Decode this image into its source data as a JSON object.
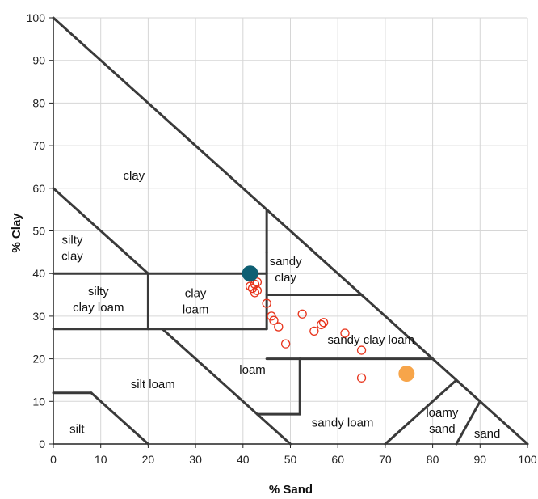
{
  "chart_data": {
    "type": "scatter",
    "title": "",
    "xlabel": "% Sand",
    "ylabel": "% Clay",
    "xlim": [
      0,
      100
    ],
    "ylim": [
      0,
      100
    ],
    "x_ticks": [
      "0",
      "10",
      "20",
      "30",
      "40",
      "50",
      "60",
      "70",
      "80",
      "90",
      "100"
    ],
    "y_ticks": [
      "0",
      "10",
      "20",
      "30",
      "40",
      "50",
      "60",
      "70",
      "80",
      "90",
      "100"
    ],
    "grid": true,
    "region_labels": [
      {
        "text": [
          "clay"
        ],
        "x": 17,
        "y": 63
      },
      {
        "text": [
          "silty",
          "clay"
        ],
        "x": 4,
        "y": 46
      },
      {
        "text": [
          "silty",
          "clay loam"
        ],
        "x": 9.5,
        "y": 34
      },
      {
        "text": [
          "clay",
          "loam"
        ],
        "x": 30,
        "y": 33.5
      },
      {
        "text": [
          "sandy",
          "clay"
        ],
        "x": 49,
        "y": 41
      },
      {
        "text": [
          "sandy clay loam"
        ],
        "x": 67,
        "y": 24.5
      },
      {
        "text": [
          "loam"
        ],
        "x": 42,
        "y": 17.5
      },
      {
        "text": [
          "silt loam"
        ],
        "x": 21,
        "y": 14
      },
      {
        "text": [
          "silt"
        ],
        "x": 5,
        "y": 3.5
      },
      {
        "text": [
          "sandy loam"
        ],
        "x": 61,
        "y": 5
      },
      {
        "text": [
          "loamy",
          "sand"
        ],
        "x": 82,
        "y": 5.5
      },
      {
        "text": [
          "sand"
        ],
        "x": 91.5,
        "y": 2.5
      }
    ],
    "boundaries": [
      [
        [
          0,
          100
        ],
        [
          100,
          0
        ]
      ],
      [
        [
          0,
          60
        ],
        [
          20,
          40
        ]
      ],
      [
        [
          0,
          40
        ],
        [
          45,
          40
        ]
      ],
      [
        [
          20,
          40
        ],
        [
          20,
          27
        ]
      ],
      [
        [
          0,
          27
        ],
        [
          45,
          27
        ]
      ],
      [
        [
          45,
          45
        ],
        [
          45,
          27
        ]
      ],
      [
        [
          45,
          35
        ],
        [
          65,
          35
        ]
      ],
      [
        [
          45,
          55
        ],
        [
          45,
          45
        ]
      ],
      [
        [
          45,
          20
        ],
        [
          80,
          20
        ]
      ],
      [
        [
          52,
          20
        ],
        [
          52,
          7
        ]
      ],
      [
        [
          43,
          7
        ],
        [
          52,
          7
        ]
      ],
      [
        [
          23,
          27
        ],
        [
          50,
          0
        ]
      ],
      [
        [
          0,
          12
        ],
        [
          8,
          12
        ]
      ],
      [
        [
          8,
          12
        ],
        [
          20,
          0
        ]
      ],
      [
        [
          70,
          0
        ],
        [
          85,
          15
        ]
      ],
      [
        [
          85,
          0
        ],
        [
          90,
          10
        ]
      ]
    ],
    "series": [
      {
        "marker": "open-circle",
        "color": "#e8341c",
        "points": [
          [
            41.5,
            37
          ],
          [
            42,
            36.5
          ],
          [
            42.5,
            37.5
          ],
          [
            43,
            38
          ],
          [
            42.5,
            35.5
          ],
          [
            43,
            36
          ],
          [
            45,
            33
          ],
          [
            46,
            30
          ],
          [
            46.5,
            29
          ],
          [
            47.5,
            27.5
          ],
          [
            49,
            23.5
          ],
          [
            52.5,
            30.5
          ],
          [
            55,
            26.5
          ],
          [
            56.5,
            28
          ],
          [
            57,
            28.5
          ],
          [
            61.5,
            26
          ],
          [
            65,
            22
          ],
          [
            65,
            15.5
          ]
        ]
      },
      {
        "marker": "filled-circle",
        "color": "#0e5f73",
        "points": [
          [
            41.5,
            40
          ]
        ]
      },
      {
        "marker": "filled-circle",
        "color": "#f7a54a",
        "points": [
          [
            74.5,
            16.5
          ]
        ]
      }
    ]
  }
}
